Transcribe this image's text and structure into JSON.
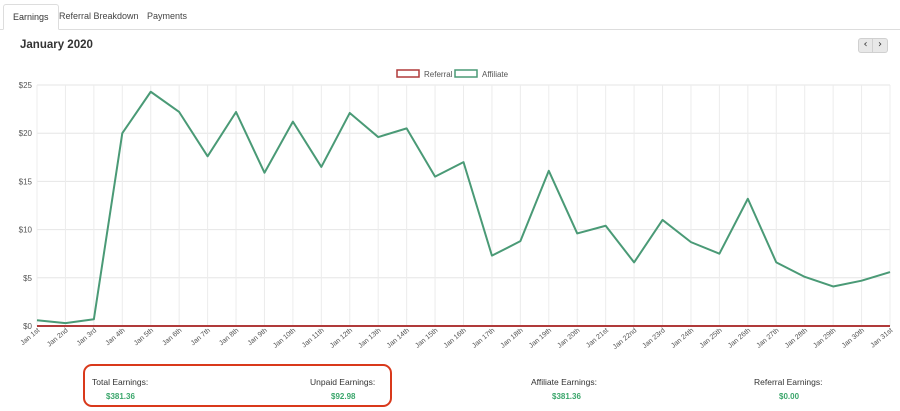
{
  "tabs": [
    {
      "label": "Earnings",
      "active": true
    },
    {
      "label": "Referral Breakdown",
      "active": false
    },
    {
      "label": "Payments",
      "active": false
    }
  ],
  "header": {
    "title": "January 2020",
    "prev_icon": "chevron-left-icon",
    "next_icon": "chevron-right-icon",
    "prev_glyph": "‹",
    "next_glyph": "›"
  },
  "chart_data": {
    "type": "line",
    "title": "",
    "xlabel": "",
    "ylabel": "",
    "ylim": [
      0,
      25
    ],
    "y_ticks": [
      "$0",
      "$5",
      "$10",
      "$15",
      "$20",
      "$25"
    ],
    "y_tick_values": [
      0,
      5,
      10,
      15,
      20,
      25
    ],
    "grid": true,
    "legend_placement": "top-center",
    "x": [
      "Jan 1st",
      "Jan 2nd",
      "Jan 3rd",
      "Jan 4th",
      "Jan 5th",
      "Jan 6th",
      "Jan 7th",
      "Jan 8th",
      "Jan 9th",
      "Jan 10th",
      "Jan 11th",
      "Jan 12th",
      "Jan 13th",
      "Jan 14th",
      "Jan 15th",
      "Jan 16th",
      "Jan 17th",
      "Jan 18th",
      "Jan 19th",
      "Jan 20th",
      "Jan 21st",
      "Jan 22nd",
      "Jan 23rd",
      "Jan 24th",
      "Jan 25th",
      "Jan 26th",
      "Jan 27th",
      "Jan 28th",
      "Jan 29th",
      "Jan 30th",
      "Jan 31st"
    ],
    "series": [
      {
        "name": "Referral",
        "color": "#b03a3a",
        "values": [
          0,
          0,
          0,
          0,
          0,
          0,
          0,
          0,
          0,
          0,
          0,
          0,
          0,
          0,
          0,
          0,
          0,
          0,
          0,
          0,
          0,
          0,
          0,
          0,
          0,
          0,
          0,
          0,
          0,
          0,
          0
        ]
      },
      {
        "name": "Affiliate",
        "color": "#4a9a76",
        "values": [
          0.6,
          0.3,
          0.7,
          20.0,
          24.3,
          22.2,
          17.6,
          22.2,
          15.9,
          21.2,
          16.5,
          22.1,
          19.6,
          20.5,
          15.5,
          17.0,
          7.3,
          8.8,
          16.1,
          9.6,
          10.4,
          6.6,
          11.0,
          8.7,
          7.5,
          13.2,
          6.6,
          5.1,
          4.1,
          4.7,
          5.6
        ]
      }
    ]
  },
  "summary": {
    "total_label": "Total Earnings:",
    "total_value": "$381.36",
    "unpaid_label": "Unpaid Earnings:",
    "unpaid_value": "$92.98",
    "affiliate_label": "Affiliate Earnings:",
    "affiliate_value": "$381.36",
    "referral_label": "Referral Earnings:",
    "referral_value": "$0.00",
    "value_color": "#3aa66b"
  }
}
